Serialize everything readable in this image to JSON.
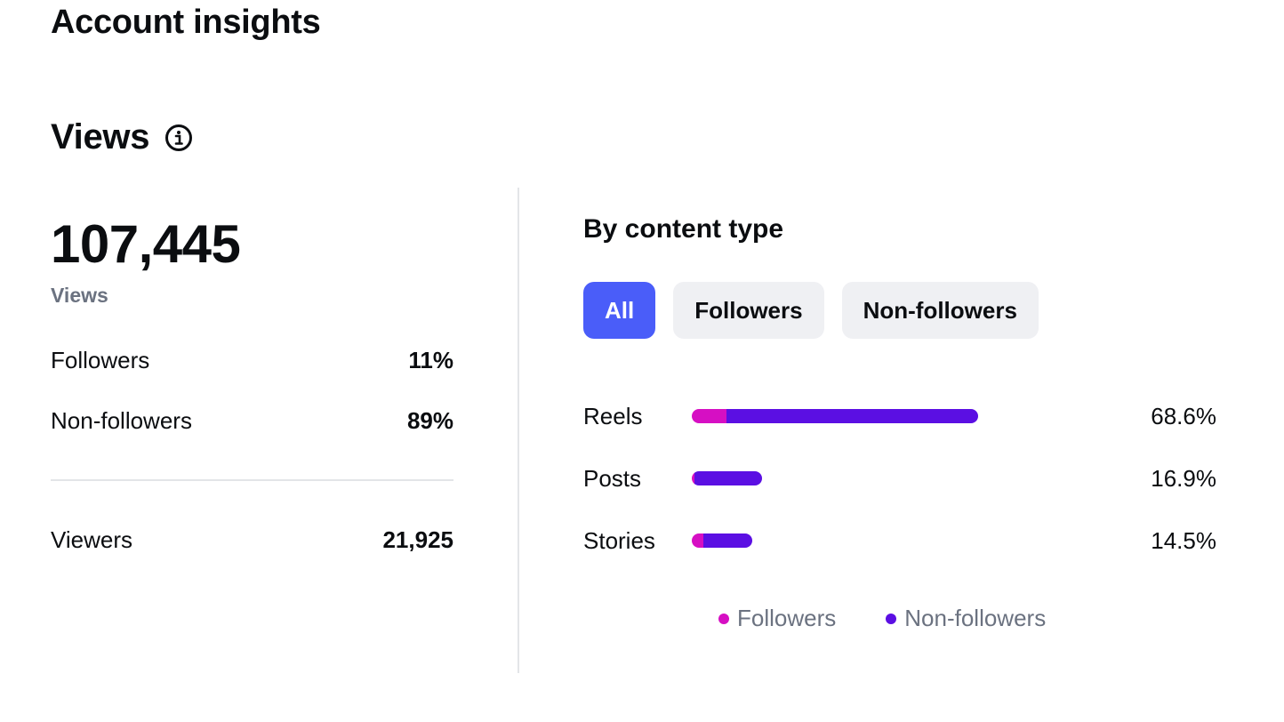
{
  "page_title": "Account insights",
  "section": {
    "title": "Views",
    "info_icon": "info-icon"
  },
  "summary": {
    "total_value": "107,445",
    "total_label": "Views",
    "rows": {
      "followers": {
        "label": "Followers",
        "value": "11%"
      },
      "non_followers": {
        "label": "Non-followers",
        "value": "89%"
      },
      "viewers": {
        "label": "Viewers",
        "value": "21,925"
      }
    }
  },
  "content_type": {
    "title": "By content type",
    "filters": [
      {
        "label": "All",
        "active": true
      },
      {
        "label": "Followers",
        "active": false
      },
      {
        "label": "Non-followers",
        "active": false
      }
    ]
  },
  "chart_data": {
    "type": "bar",
    "orientation": "horizontal",
    "stacked": true,
    "categories": [
      "Reels",
      "Posts",
      "Stories"
    ],
    "values": [
      68.6,
      16.9,
      14.5
    ],
    "value_labels": [
      "68.6%",
      "16.9%",
      "14.5%"
    ],
    "series": [
      {
        "name": "Followers",
        "color": "#d60fc3",
        "values": [
          8.2,
          0.6,
          2.7
        ]
      },
      {
        "name": "Non-followers",
        "color": "#5b0fe3",
        "values": [
          60.4,
          16.3,
          11.8
        ]
      }
    ],
    "legend_position": "bottom",
    "grid": false
  }
}
